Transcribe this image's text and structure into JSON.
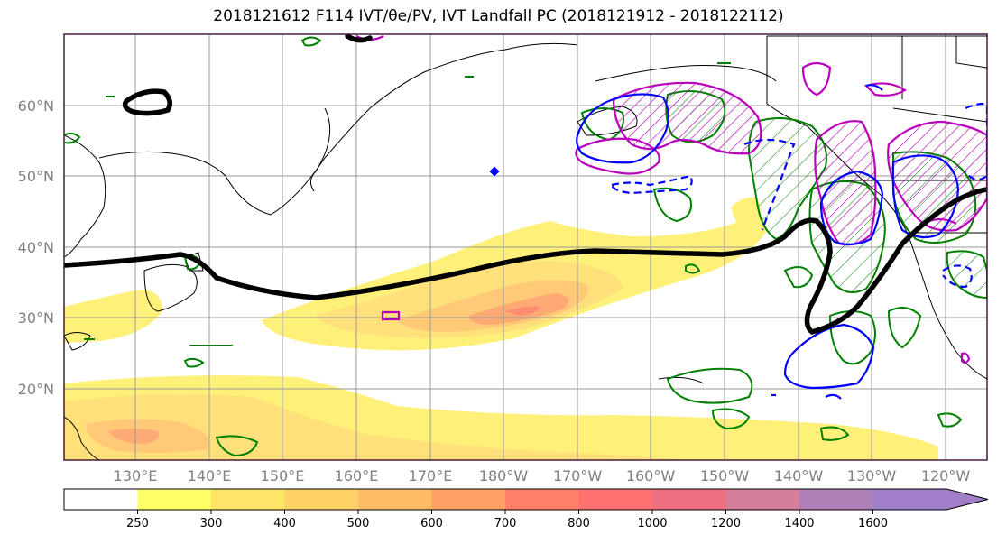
{
  "title": "2018121612 F114 IVT/θe/PV, IVT Landfall PC (2018121912 - 2018122112)",
  "lat_labels": [
    "60°N",
    "50°N",
    "40°N",
    "30°N",
    "20°N"
  ],
  "lon_labels": [
    "130°E",
    "140°E",
    "150°E",
    "160°E",
    "170°E",
    "180°W",
    "170°W",
    "160°W",
    "150°W",
    "140°W",
    "130°W",
    "120°W"
  ],
  "colorbar": {
    "ticks": [
      "250",
      "300",
      "400",
      "500",
      "600",
      "700",
      "800",
      "1000",
      "1200",
      "1400",
      "1600"
    ],
    "colors": [
      "#ffffff",
      "#ffff66",
      "#ffe566",
      "#ffd166",
      "#ffbb66",
      "#ffa066",
      "#ff8066",
      "#ff7070",
      "#ee7080",
      "#d37f9a",
      "#b080b8",
      "#a07ec8"
    ]
  },
  "shading_colors": {
    "light": "#fff07a",
    "mid": "#ffc978",
    "dark": "#ff9e72"
  },
  "contour_colors": {
    "pv": "#000000",
    "blue": "#0000ff",
    "magenta": "#bb00bb",
    "green": "#008000"
  }
}
